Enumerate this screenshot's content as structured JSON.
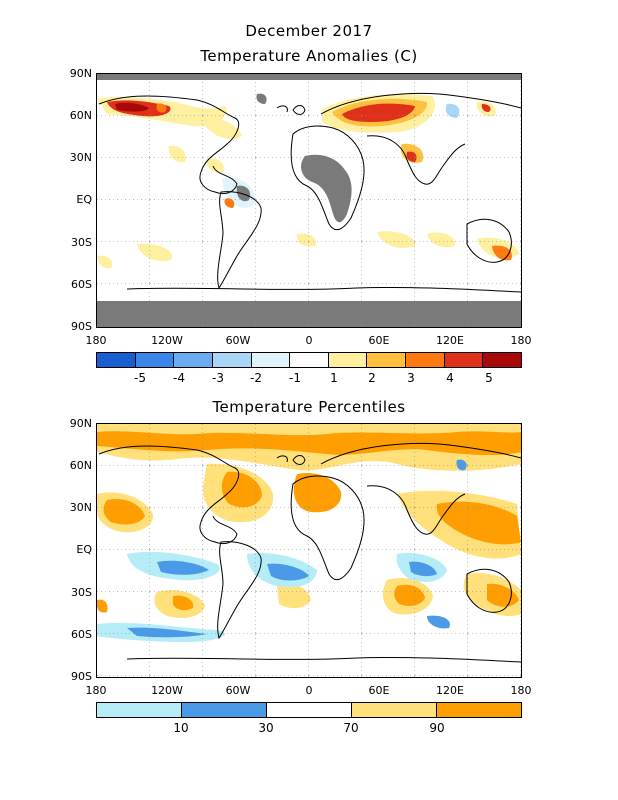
{
  "header": {
    "title_line1": "December 2017",
    "title_line2": "Temperature Anomalies (C)"
  },
  "second_title": "Temperature Percentiles",
  "lat_labels": [
    "90N",
    "60N",
    "30N",
    "EQ",
    "30S",
    "60S",
    "90S"
  ],
  "lon_labels": [
    "180",
    "120W",
    "60W",
    "0",
    "60E",
    "120E",
    "180"
  ],
  "anomaly_legend": {
    "colors": [
      "#1a5fd0",
      "#3a85e8",
      "#6aaaf0",
      "#a9d5f7",
      "#dff5fb",
      "#ffffff",
      "#fff0a0",
      "#ffc040",
      "#ff7a10",
      "#e0301a",
      "#a80808"
    ],
    "labels": [
      "-5",
      "-4",
      "-3",
      "-2",
      "-1",
      "1",
      "2",
      "3",
      "4",
      "5"
    ]
  },
  "percentile_legend": {
    "colors": [
      "#b4ecf8",
      "#4a9ae8",
      "#ffffff",
      "#ffe07a",
      "#ff9e00"
    ],
    "labels": [
      "10",
      "30",
      "70",
      "90"
    ]
  }
}
